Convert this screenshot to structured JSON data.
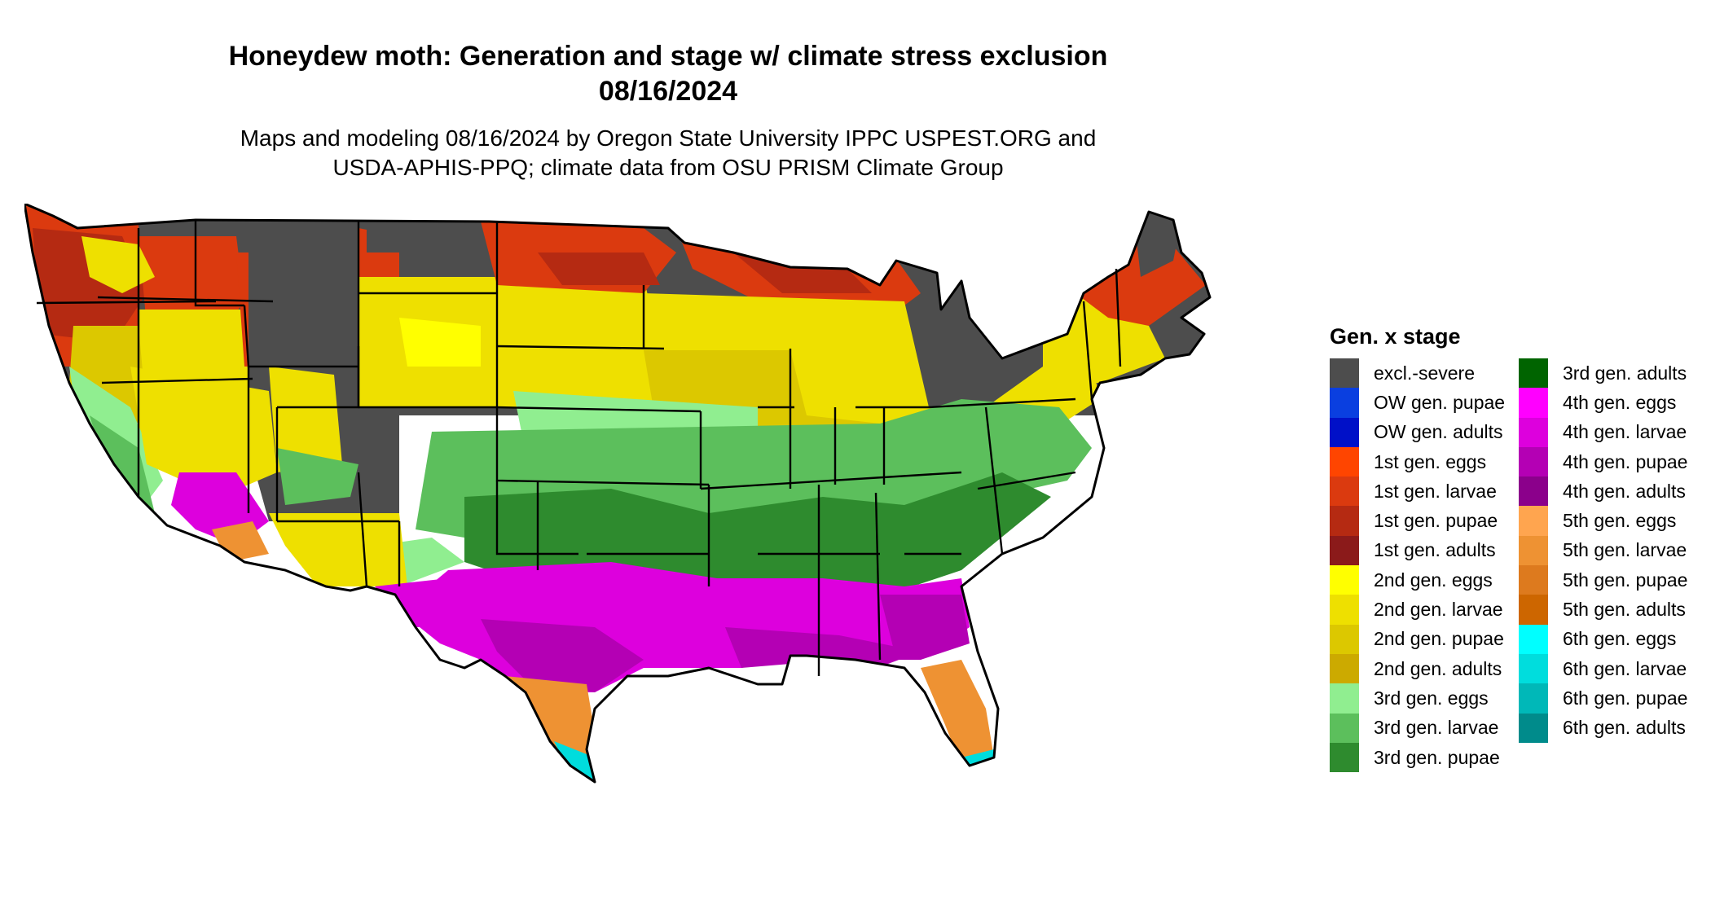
{
  "title": {
    "line1": "Honeydew moth: Generation and stage w/ climate stress exclusion",
    "line2": "08/16/2024"
  },
  "subtitle": {
    "line1": "Maps and modeling 08/16/2024 by Oregon State University IPPC USPEST.ORG and",
    "line2": "USDA-APHIS-PPQ; climate data from OSU PRISM Climate Group"
  },
  "legend": {
    "title": "Gen. x stage",
    "items": [
      {
        "label": "excl.-severe",
        "color": "#4d4d4d"
      },
      {
        "label": "OW gen. pupae",
        "color": "#0a3fe0"
      },
      {
        "label": "OW gen. adults",
        "color": "#0010c8"
      },
      {
        "label": "1st gen. eggs",
        "color": "#ff4500"
      },
      {
        "label": "1st gen. larvae",
        "color": "#db3a0f"
      },
      {
        "label": "1st gen. pupae",
        "color": "#b52a12"
      },
      {
        "label": "1st gen. adults",
        "color": "#8b1a1a"
      },
      {
        "label": "2nd gen. eggs",
        "color": "#ffff00"
      },
      {
        "label": "2nd gen. larvae",
        "color": "#eee000"
      },
      {
        "label": "2nd gen. pupae",
        "color": "#dcc800"
      },
      {
        "label": "2nd gen. adults",
        "color": "#ccaa00"
      },
      {
        "label": "3rd gen. eggs",
        "color": "#90ee90"
      },
      {
        "label": "3rd gen. larvae",
        "color": "#5cbf5c"
      },
      {
        "label": "3rd gen. pupae",
        "color": "#2e8b2e"
      },
      {
        "label": "3rd gen. adults",
        "color": "#006400"
      },
      {
        "label": "4th gen. eggs",
        "color": "#ff00ff"
      },
      {
        "label": "4th gen. larvae",
        "color": "#dd00dd"
      },
      {
        "label": "4th gen. pupae",
        "color": "#b400b4"
      },
      {
        "label": "4th gen. adults",
        "color": "#8b008b"
      },
      {
        "label": "5th gen. eggs",
        "color": "#ffa54f"
      },
      {
        "label": "5th gen. larvae",
        "color": "#ee9233"
      },
      {
        "label": "5th gen. pupae",
        "color": "#dd7a1e"
      },
      {
        "label": "5th gen. adults",
        "color": "#cd6600"
      },
      {
        "label": "6th gen. eggs",
        "color": "#00ffff"
      },
      {
        "label": "6th gen. larvae",
        "color": "#00dddd"
      },
      {
        "label": "6th gen. pupae",
        "color": "#00b8b8"
      },
      {
        "label": "6th gen. adults",
        "color": "#008b8b"
      }
    ]
  }
}
